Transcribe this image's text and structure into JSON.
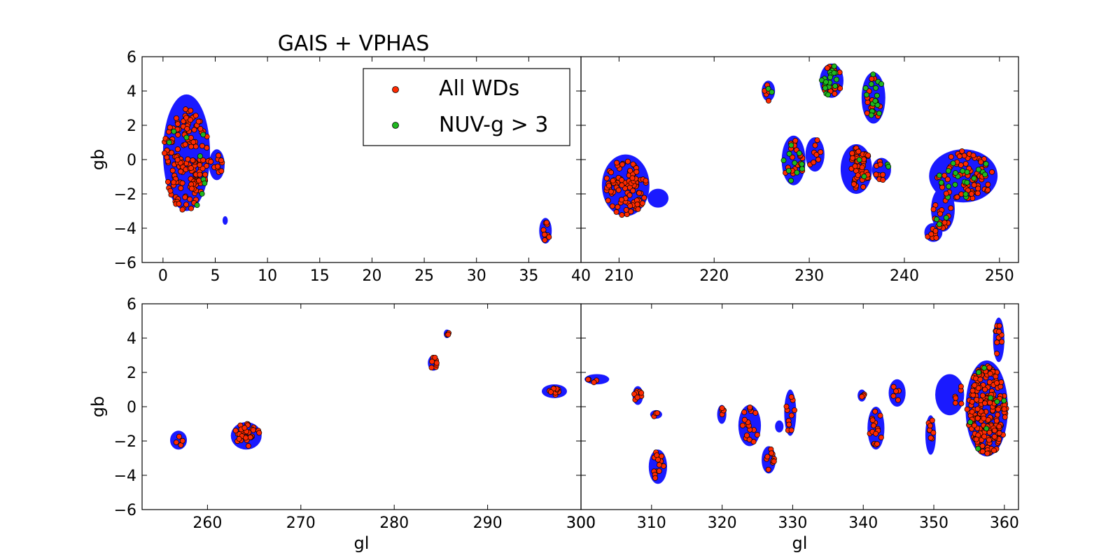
{
  "figure": {
    "title": "GAIS + VPHAS"
  },
  "legend": {
    "placement": "top-right of upper-left panel",
    "entries": [
      {
        "label": "All WDs",
        "color": "#ff2a00"
      },
      {
        "label": "NUV-g > 3",
        "color": "#1fb81f"
      }
    ]
  },
  "colors": {
    "footprint": "#1a1aff",
    "all_wds": "#ff2a00",
    "nuv_g": "#1fb81f",
    "marker_edge": "#000000"
  },
  "chart_data": [
    {
      "type": "scatter",
      "panel": "top-left",
      "xlim": [
        -2,
        40
      ],
      "ylim": [
        -6,
        6
      ],
      "xticks": [
        0,
        5,
        10,
        15,
        20,
        25,
        30,
        35,
        40
      ],
      "yticks": [
        -6,
        -4,
        -2,
        0,
        2,
        4,
        6
      ],
      "xticklabels": [
        "0",
        "5",
        "10",
        "15",
        "20",
        "25",
        "30",
        "35",
        "40"
      ],
      "yticklabels": [
        "−6",
        "−4",
        "−2",
        "0",
        "2",
        "4",
        "6"
      ],
      "xlabel": "",
      "ylabel": "gb",
      "footprints": [
        {
          "x": [
            0,
            4.5
          ],
          "y": [
            -3.0,
            3.8
          ]
        },
        {
          "x": [
            4.4,
            5.9
          ],
          "y": [
            -1.2,
            0.6
          ]
        },
        {
          "x": [
            5.7,
            6.2
          ],
          "y": [
            -3.8,
            -3.3
          ]
        },
        {
          "x": [
            36.0,
            37.2
          ],
          "y": [
            -4.9,
            -3.4
          ]
        }
      ],
      "clusters": [
        {
          "x": [
            0,
            4.5
          ],
          "y": [
            -3.0,
            3.0
          ],
          "n": 170,
          "nuv_frac": 0.05
        },
        {
          "x": [
            4.4,
            5.7
          ],
          "y": [
            -1.0,
            0.3
          ],
          "n": 10,
          "nuv_frac": 0
        },
        {
          "x": [
            36.2,
            37.0
          ],
          "y": [
            -4.8,
            -3.6
          ],
          "n": 9,
          "nuv_frac": 0
        }
      ]
    },
    {
      "type": "scatter",
      "panel": "top-right",
      "xlim": [
        206,
        252
      ],
      "ylim": [
        -6,
        6
      ],
      "xticks": [
        210,
        220,
        230,
        240,
        250
      ],
      "yticks": [
        -6,
        -4,
        -2,
        0,
        2,
        4,
        6
      ],
      "xticklabels": [
        "210",
        "220",
        "230",
        "240",
        "250"
      ],
      "yticklabels": [],
      "xlabel": "",
      "ylabel": "",
      "footprints": [
        {
          "x": [
            208.2,
            213.2
          ],
          "y": [
            -3.3,
            0.3
          ]
        },
        {
          "x": [
            213.0,
            215.2
          ],
          "y": [
            -2.8,
            -1.7
          ]
        },
        {
          "x": [
            225.0,
            226.4
          ],
          "y": [
            3.4,
            4.6
          ]
        },
        {
          "x": [
            227.1,
            229.6
          ],
          "y": [
            -1.5,
            1.4
          ]
        },
        {
          "x": [
            229.6,
            231.6
          ],
          "y": [
            -0.7,
            1.3
          ]
        },
        {
          "x": [
            231.1,
            233.6
          ],
          "y": [
            3.6,
            5.6
          ]
        },
        {
          "x": [
            235.5,
            238.0
          ],
          "y": [
            2.1,
            5.1
          ]
        },
        {
          "x": [
            233.3,
            236.6
          ],
          "y": [
            -2.0,
            0.9
          ]
        },
        {
          "x": [
            236.6,
            238.6
          ],
          "y": [
            -1.3,
            0.1
          ]
        },
        {
          "x": [
            242.1,
            244.0
          ],
          "y": [
            -4.8,
            -3.7
          ]
        },
        {
          "x": [
            242.8,
            245.3
          ],
          "y": [
            -4.2,
            -1.6
          ]
        },
        {
          "x": [
            242.6,
            249.8
          ],
          "y": [
            -2.5,
            0.6
          ]
        }
      ],
      "clusters": [
        {
          "x": [
            208.5,
            213.0
          ],
          "y": [
            -3.3,
            0.0
          ],
          "n": 90,
          "nuv_frac": 0
        },
        {
          "x": [
            225.3,
            226.2
          ],
          "y": [
            3.4,
            4.5
          ],
          "n": 7,
          "nuv_frac": 0.4
        },
        {
          "x": [
            227.3,
            229.4
          ],
          "y": [
            -1.4,
            1.2
          ],
          "n": 30,
          "nuv_frac": 0.15
        },
        {
          "x": [
            229.8,
            231.4
          ],
          "y": [
            -0.5,
            1.2
          ],
          "n": 8,
          "nuv_frac": 0
        },
        {
          "x": [
            231.3,
            233.4
          ],
          "y": [
            3.7,
            5.5
          ],
          "n": 35,
          "nuv_frac": 0.55
        },
        {
          "x": [
            235.7,
            237.8
          ],
          "y": [
            2.3,
            5.0
          ],
          "n": 30,
          "nuv_frac": 0.45
        },
        {
          "x": [
            234.2,
            236.4
          ],
          "y": [
            -1.9,
            0.8
          ],
          "n": 55,
          "nuv_frac": 0.02
        },
        {
          "x": [
            236.8,
            238.4
          ],
          "y": [
            -1.2,
            0.0
          ],
          "n": 10,
          "nuv_frac": 0.3
        },
        {
          "x": [
            242.3,
            243.8
          ],
          "y": [
            -4.7,
            -3.9
          ],
          "n": 8,
          "nuv_frac": 0
        },
        {
          "x": [
            243.0,
            245.0
          ],
          "y": [
            -4.0,
            -1.8
          ],
          "n": 22,
          "nuv_frac": 0.3
        },
        {
          "x": [
            243.2,
            249.6
          ],
          "y": [
            -2.3,
            0.5
          ],
          "n": 90,
          "nuv_frac": 0.25
        }
      ]
    },
    {
      "type": "scatter",
      "panel": "bottom-left",
      "xlim": [
        253,
        300
      ],
      "ylim": [
        -6,
        6
      ],
      "xticks": [
        260,
        270,
        280,
        290,
        300
      ],
      "yticks": [
        -6,
        -4,
        -2,
        0,
        2,
        4,
        6
      ],
      "xticklabels": [
        "260",
        "270",
        "280",
        "290",
        "300"
      ],
      "yticklabels": [
        "−6",
        "−4",
        "−2",
        "0",
        "2",
        "4",
        "6"
      ],
      "xlabel": "gl",
      "ylabel": "gb",
      "footprints": [
        {
          "x": [
            256.0,
            257.8
          ],
          "y": [
            -2.5,
            -1.4
          ]
        },
        {
          "x": [
            262.5,
            265.8
          ],
          "y": [
            -2.5,
            -0.9
          ]
        },
        {
          "x": [
            283.6,
            284.8
          ],
          "y": [
            2.1,
            3.0
          ]
        },
        {
          "x": [
            285.3,
            286.0
          ],
          "y": [
            4.0,
            4.5
          ]
        },
        {
          "x": [
            295.8,
            298.5
          ],
          "y": [
            0.5,
            1.3
          ]
        }
      ],
      "clusters": [
        {
          "x": [
            256.2,
            257.5
          ],
          "y": [
            -2.3,
            -1.6
          ],
          "n": 4,
          "nuv_frac": 0
        },
        {
          "x": [
            262.8,
            265.6
          ],
          "y": [
            -2.3,
            -1.0
          ],
          "n": 30,
          "nuv_frac": 0
        },
        {
          "x": [
            283.8,
            284.6
          ],
          "y": [
            2.2,
            2.9
          ],
          "n": 8,
          "nuv_frac": 0
        },
        {
          "x": [
            285.4,
            285.9
          ],
          "y": [
            4.1,
            4.4
          ],
          "n": 3,
          "nuv_frac": 0
        },
        {
          "x": [
            296.4,
            298.0
          ],
          "y": [
            0.6,
            1.1
          ],
          "n": 10,
          "nuv_frac": 0
        }
      ]
    },
    {
      "type": "scatter",
      "panel": "bottom-right",
      "xlim": [
        300,
        362
      ],
      "ylim": [
        -6,
        6
      ],
      "xticks": [
        300,
        310,
        320,
        330,
        340,
        350,
        360
      ],
      "yticks": [
        -6,
        -4,
        -2,
        0,
        2,
        4,
        6
      ],
      "xticklabels": [
        "300",
        "310",
        "320",
        "330",
        "340",
        "350",
        "360"
      ],
      "yticklabels": [],
      "xlabel": "gl",
      "ylabel": "",
      "footprints": [
        {
          "x": [
            300.5,
            304.0
          ],
          "y": [
            1.3,
            1.9
          ]
        },
        {
          "x": [
            307.3,
            308.8
          ],
          "y": [
            0.1,
            1.2
          ]
        },
        {
          "x": [
            309.8,
            311.5
          ],
          "y": [
            -0.7,
            -0.2
          ]
        },
        {
          "x": [
            309.6,
            312.2
          ],
          "y": [
            -4.5,
            -2.5
          ]
        },
        {
          "x": [
            319.3,
            320.6
          ],
          "y": [
            -1.0,
            0.1
          ]
        },
        {
          "x": [
            322.3,
            325.5
          ],
          "y": [
            -2.3,
            0.1
          ]
        },
        {
          "x": [
            325.6,
            327.6
          ],
          "y": [
            -3.9,
            -2.3
          ]
        },
        {
          "x": [
            328.8,
            330.5
          ],
          "y": [
            -1.7,
            1.0
          ]
        },
        {
          "x": [
            327.5,
            328.7
          ],
          "y": [
            -1.5,
            -0.8
          ]
        },
        {
          "x": [
            339.2,
            340.4
          ],
          "y": [
            0.3,
            1.0
          ]
        },
        {
          "x": [
            340.6,
            343.0
          ],
          "y": [
            -2.5,
            0.0
          ]
        },
        {
          "x": [
            343.6,
            346.0
          ],
          "y": [
            0.0,
            1.6
          ]
        },
        {
          "x": [
            348.8,
            350.3
          ],
          "y": [
            -2.8,
            -0.5
          ]
        },
        {
          "x": [
            350.2,
            354.3
          ],
          "y": [
            -0.5,
            1.9
          ]
        },
        {
          "x": [
            354.5,
            360.5
          ],
          "y": [
            -2.9,
            2.7
          ]
        },
        {
          "x": [
            358.4,
            360.0
          ],
          "y": [
            2.6,
            5.2
          ]
        }
      ],
      "clusters": [
        {
          "x": [
            300.8,
            303.5
          ],
          "y": [
            1.4,
            1.8
          ],
          "n": 4,
          "nuv_frac": 0
        },
        {
          "x": [
            307.5,
            308.6
          ],
          "y": [
            0.2,
            1.1
          ],
          "n": 8,
          "nuv_frac": 0
        },
        {
          "x": [
            310.0,
            311.0
          ],
          "y": [
            -0.6,
            -0.3
          ],
          "n": 3,
          "nuv_frac": 0
        },
        {
          "x": [
            309.8,
            312.0
          ],
          "y": [
            -4.4,
            -2.6
          ],
          "n": 14,
          "nuv_frac": 0
        },
        {
          "x": [
            319.5,
            320.4
          ],
          "y": [
            -0.9,
            0.0
          ],
          "n": 5,
          "nuv_frac": 0
        },
        {
          "x": [
            322.6,
            325.3
          ],
          "y": [
            -2.2,
            0.0
          ],
          "n": 18,
          "nuv_frac": 0
        },
        {
          "x": [
            325.8,
            327.4
          ],
          "y": [
            -3.7,
            -2.4
          ],
          "n": 10,
          "nuv_frac": 0
        },
        {
          "x": [
            329.0,
            330.3
          ],
          "y": [
            -1.6,
            0.9
          ],
          "n": 10,
          "nuv_frac": 0
        },
        {
          "x": [
            339.4,
            340.2
          ],
          "y": [
            0.4,
            0.9
          ],
          "n": 4,
          "nuv_frac": 0
        },
        {
          "x": [
            340.8,
            342.8
          ],
          "y": [
            -2.4,
            -0.2
          ],
          "n": 16,
          "nuv_frac": 0
        },
        {
          "x": [
            343.8,
            345.6
          ],
          "y": [
            0.1,
            1.3
          ],
          "n": 5,
          "nuv_frac": 0
        },
        {
          "x": [
            349.0,
            350.1
          ],
          "y": [
            -2.6,
            -0.7
          ],
          "n": 8,
          "nuv_frac": 0
        },
        {
          "x": [
            353.0,
            354.1
          ],
          "y": [
            -0.4,
            1.6
          ],
          "n": 6,
          "nuv_frac": 0
        },
        {
          "x": [
            354.7,
            360.3
          ],
          "y": [
            -2.8,
            2.4
          ],
          "n": 220,
          "nuv_frac": 0.03
        },
        {
          "x": [
            358.6,
            359.8
          ],
          "y": [
            2.8,
            5.0
          ],
          "n": 10,
          "nuv_frac": 0
        }
      ]
    }
  ]
}
